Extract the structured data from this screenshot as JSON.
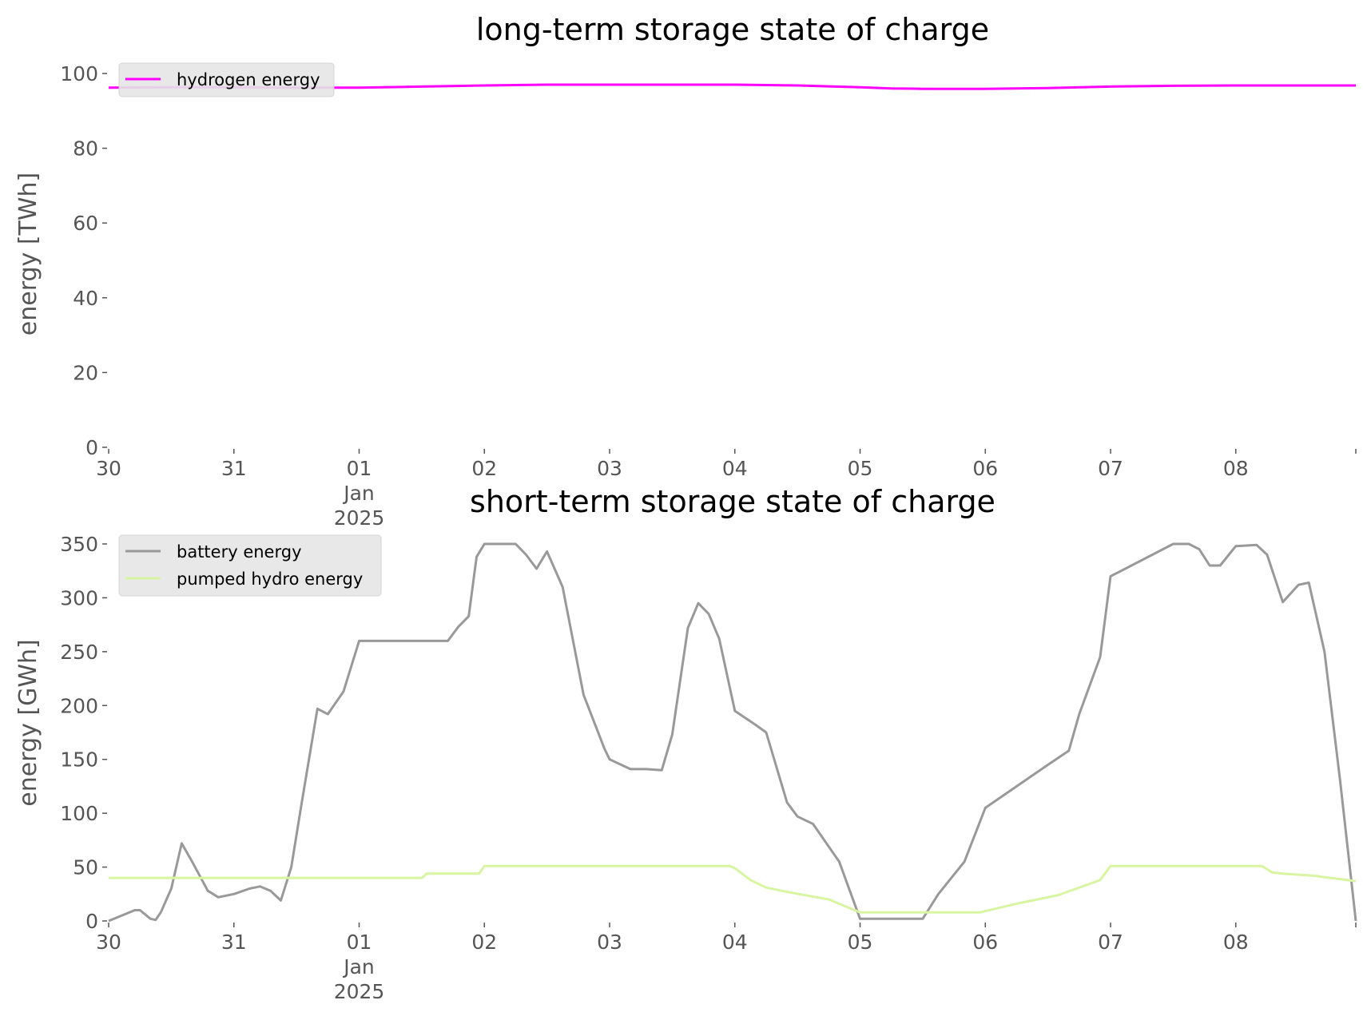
{
  "chart_data": [
    {
      "type": "line",
      "title": "long-term storage state of charge",
      "ylabel": "energy [TWh]",
      "xlabel": "",
      "ylim": [
        0,
        100
      ],
      "yticks": [
        "0",
        "20",
        "40",
        "60",
        "80",
        "100"
      ],
      "xlim": [
        "2024-12-30",
        "2025-01-08T23:00"
      ],
      "xticks": [
        "30",
        "31",
        "01",
        "02",
        "03",
        "04",
        "05",
        "06",
        "07",
        "08"
      ],
      "xtick_sublabels": [
        "Jan",
        "2025"
      ],
      "legend": "top-left",
      "grid": false,
      "series": [
        {
          "name": "hydrogen energy",
          "color": "#ff00ff",
          "points": [
            [
              "2024-12-30",
              96.2
            ],
            [
              "2024-12-30T12:00",
              96.3
            ],
            [
              "2024-12-31",
              96.3
            ],
            [
              "2024-12-31T12:00",
              96.2
            ],
            [
              "2025-01-01",
              96.2
            ],
            [
              "2025-01-01T12:00",
              96.5
            ],
            [
              "2025-01-02",
              96.8
            ],
            [
              "2025-01-02T12:00",
              97.0
            ],
            [
              "2025-01-03",
              97.0
            ],
            [
              "2025-01-03T12:00",
              97.0
            ],
            [
              "2025-01-04",
              97.0
            ],
            [
              "2025-01-04T12:00",
              96.8
            ],
            [
              "2025-01-05",
              96.3
            ],
            [
              "2025-01-05T06:00",
              96.0
            ],
            [
              "2025-01-05T12:00",
              95.9
            ],
            [
              "2025-01-06",
              95.9
            ],
            [
              "2025-01-06T12:00",
              96.1
            ],
            [
              "2025-01-07",
              96.5
            ],
            [
              "2025-01-07T12:00",
              96.7
            ],
            [
              "2025-01-08",
              96.8
            ],
            [
              "2025-01-08T23:00",
              96.8
            ]
          ]
        }
      ]
    },
    {
      "type": "line",
      "title": "short-term storage state of charge",
      "ylabel": "energy [GWh]",
      "xlabel": "",
      "ylim": [
        0,
        350
      ],
      "yticks": [
        "0",
        "50",
        "100",
        "150",
        "200",
        "250",
        "300",
        "350"
      ],
      "xlim": [
        "2024-12-30",
        "2025-01-08T23:00"
      ],
      "xticks": [
        "30",
        "31",
        "01",
        "02",
        "03",
        "04",
        "05",
        "06",
        "07",
        "08"
      ],
      "xtick_sublabels": [
        "Jan",
        "2025"
      ],
      "legend": "top-left",
      "grid": false,
      "series": [
        {
          "name": "battery energy",
          "color": "#999999",
          "points": [
            [
              "2024-12-30",
              0
            ],
            [
              "2024-12-30T03:00",
              6
            ],
            [
              "2024-12-30T05:00",
              10
            ],
            [
              "2024-12-30T06:00",
              10
            ],
            [
              "2024-12-30T08:00",
              2
            ],
            [
              "2024-12-30T09:00",
              1
            ],
            [
              "2024-12-30T10:00",
              8
            ],
            [
              "2024-12-30T12:00",
              30
            ],
            [
              "2024-12-30T14:00",
              72
            ],
            [
              "2024-12-30T16:00",
              55
            ],
            [
              "2024-12-30T19:00",
              28
            ],
            [
              "2024-12-30T21:00",
              22
            ],
            [
              "2024-12-31",
              25
            ],
            [
              "2024-12-31T03:00",
              30
            ],
            [
              "2024-12-31T05:00",
              32
            ],
            [
              "2024-12-31T07:00",
              28
            ],
            [
              "2024-12-31T09:00",
              19
            ],
            [
              "2024-12-31T11:00",
              50
            ],
            [
              "2024-12-31T13:00",
              110
            ],
            [
              "2024-12-31T16:00",
              197
            ],
            [
              "2024-12-31T18:00",
              192
            ],
            [
              "2024-12-31T21:00",
              213
            ],
            [
              "2025-01-01",
              260
            ],
            [
              "2025-01-01T17:00",
              260
            ],
            [
              "2025-01-01T19:00",
              273
            ],
            [
              "2025-01-01T21:00",
              283
            ],
            [
              "2025-01-01T22:30",
              338
            ],
            [
              "2025-01-02",
              350
            ],
            [
              "2025-01-02T06:00",
              350
            ],
            [
              "2025-01-02T08:00",
              340
            ],
            [
              "2025-01-02T10:00",
              327
            ],
            [
              "2025-01-02T12:00",
              343
            ],
            [
              "2025-01-02T15:00",
              310
            ],
            [
              "2025-01-02T19:00",
              210
            ],
            [
              "2025-01-02T23:00",
              160
            ],
            [
              "2025-01-03",
              150
            ],
            [
              "2025-01-03T04:00",
              141
            ],
            [
              "2025-01-03T07:00",
              141
            ],
            [
              "2025-01-03T10:00",
              140
            ],
            [
              "2025-01-03T12:00",
              173
            ],
            [
              "2025-01-03T15:00",
              272
            ],
            [
              "2025-01-03T17:00",
              295
            ],
            [
              "2025-01-03T19:00",
              285
            ],
            [
              "2025-01-03T21:00",
              262
            ],
            [
              "2025-01-04",
              195
            ],
            [
              "2025-01-04T04:00",
              182
            ],
            [
              "2025-01-04T06:00",
              175
            ],
            [
              "2025-01-04T10:00",
              110
            ],
            [
              "2025-01-04T12:00",
              97
            ],
            [
              "2025-01-04T15:00",
              90
            ],
            [
              "2025-01-04T20:00",
              55
            ],
            [
              "2025-01-05",
              2
            ],
            [
              "2025-01-05T12:00",
              2
            ],
            [
              "2025-01-05T15:00",
              25
            ],
            [
              "2025-01-05T20:00",
              55
            ],
            [
              "2025-01-06",
              105
            ],
            [
              "2025-01-06T06:00",
              125
            ],
            [
              "2025-01-06T12:00",
              145
            ],
            [
              "2025-01-06T16:00",
              158
            ],
            [
              "2025-01-06T18:00",
              192
            ],
            [
              "2025-01-06T22:00",
              245
            ],
            [
              "2025-01-07",
              320
            ],
            [
              "2025-01-07T12:00",
              350
            ],
            [
              "2025-01-07T15:00",
              350
            ],
            [
              "2025-01-07T17:00",
              345
            ],
            [
              "2025-01-07T19:00",
              330
            ],
            [
              "2025-01-07T21:00",
              330
            ],
            [
              "2025-01-08",
              348
            ],
            [
              "2025-01-08T04:00",
              349
            ],
            [
              "2025-01-08T06:00",
              340
            ],
            [
              "2025-01-08T09:00",
              296
            ],
            [
              "2025-01-08T12:00",
              312
            ],
            [
              "2025-01-08T14:00",
              314
            ],
            [
              "2025-01-08T17:00",
              250
            ],
            [
              "2025-01-08T20:00",
              130
            ],
            [
              "2025-01-08T23:00",
              0
            ]
          ]
        },
        {
          "name": "pumped hydro energy",
          "color": "#d8f5a2",
          "points": [
            [
              "2024-12-30",
              40
            ],
            [
              "2025-01-01T12:00",
              40
            ],
            [
              "2025-01-01T13:00",
              44
            ],
            [
              "2025-01-01T23:00",
              44
            ],
            [
              "2025-01-02",
              51
            ],
            [
              "2025-01-03T23:00",
              51
            ],
            [
              "2025-01-04",
              49
            ],
            [
              "2025-01-04T03:00",
              38
            ],
            [
              "2025-01-04T06:00",
              31
            ],
            [
              "2025-01-04T10:00",
              27
            ],
            [
              "2025-01-04T18:00",
              20
            ],
            [
              "2025-01-05",
              8
            ],
            [
              "2025-01-05T23:00",
              8
            ],
            [
              "2025-01-06T06:00",
              16
            ],
            [
              "2025-01-06T14:00",
              24
            ],
            [
              "2025-01-06T22:00",
              38
            ],
            [
              "2025-01-07",
              51
            ],
            [
              "2025-01-08T05:00",
              51
            ],
            [
              "2025-01-08T07:00",
              45
            ],
            [
              "2025-01-08T09:00",
              44
            ],
            [
              "2025-01-08T15:00",
              42
            ],
            [
              "2025-01-08T23:00",
              37
            ]
          ]
        }
      ]
    }
  ]
}
